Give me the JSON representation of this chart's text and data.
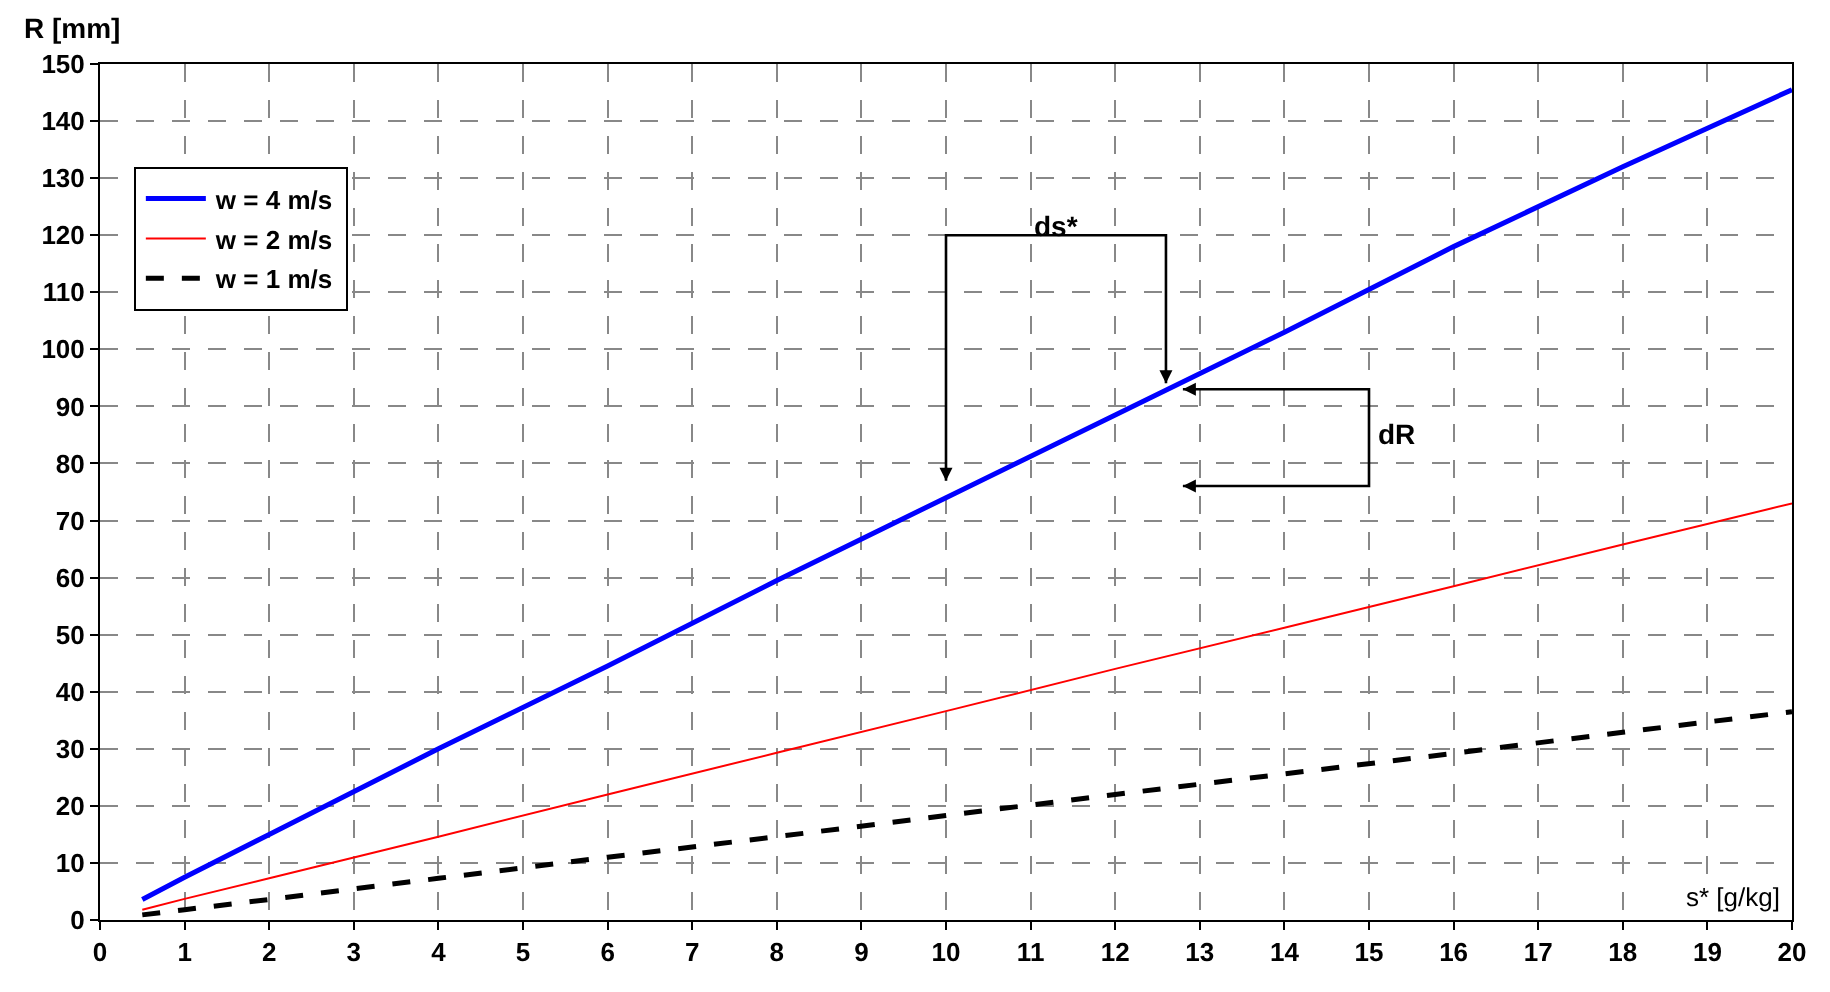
{
  "chart_data": {
    "type": "line",
    "xlabel": "s* [g/kg]",
    "ylabel": "R [mm]",
    "x": [
      0.5,
      1,
      2,
      4,
      6,
      8,
      10,
      12,
      14,
      16,
      18,
      20
    ],
    "series": [
      {
        "name": "w = 4 m/s",
        "color": "#0000ff",
        "values": [
          3.6,
          7.5,
          15,
          30,
          44.5,
          59.5,
          74,
          88.5,
          103,
          118,
          132,
          145.5
        ]
      },
      {
        "name": "w = 2 m/s",
        "color": "#ff0000",
        "values": [
          1.8,
          3.7,
          7.3,
          14.6,
          22,
          29.3,
          36.6,
          44,
          51.2,
          58.5,
          65.8,
          73
        ]
      },
      {
        "name": "w = 1 m/s",
        "color": "#000000",
        "line_style": "dashed",
        "values": [
          0.9,
          1.8,
          3.6,
          7.3,
          11,
          14.6,
          18.3,
          22,
          25.6,
          29.2,
          32.9,
          36.5
        ]
      }
    ],
    "xlim": [
      0,
      20
    ],
    "xticks": [
      0,
      1,
      2,
      3,
      4,
      5,
      6,
      7,
      8,
      9,
      10,
      11,
      12,
      13,
      14,
      15,
      16,
      17,
      18,
      19,
      20
    ],
    "ylim": [
      0,
      150
    ],
    "yticks": [
      0,
      10,
      20,
      30,
      40,
      50,
      60,
      70,
      80,
      90,
      100,
      110,
      120,
      130,
      140,
      150
    ],
    "grid": true,
    "legend": "top left",
    "marker": "none",
    "annotations": [
      "ds*",
      "dR"
    ]
  }
}
